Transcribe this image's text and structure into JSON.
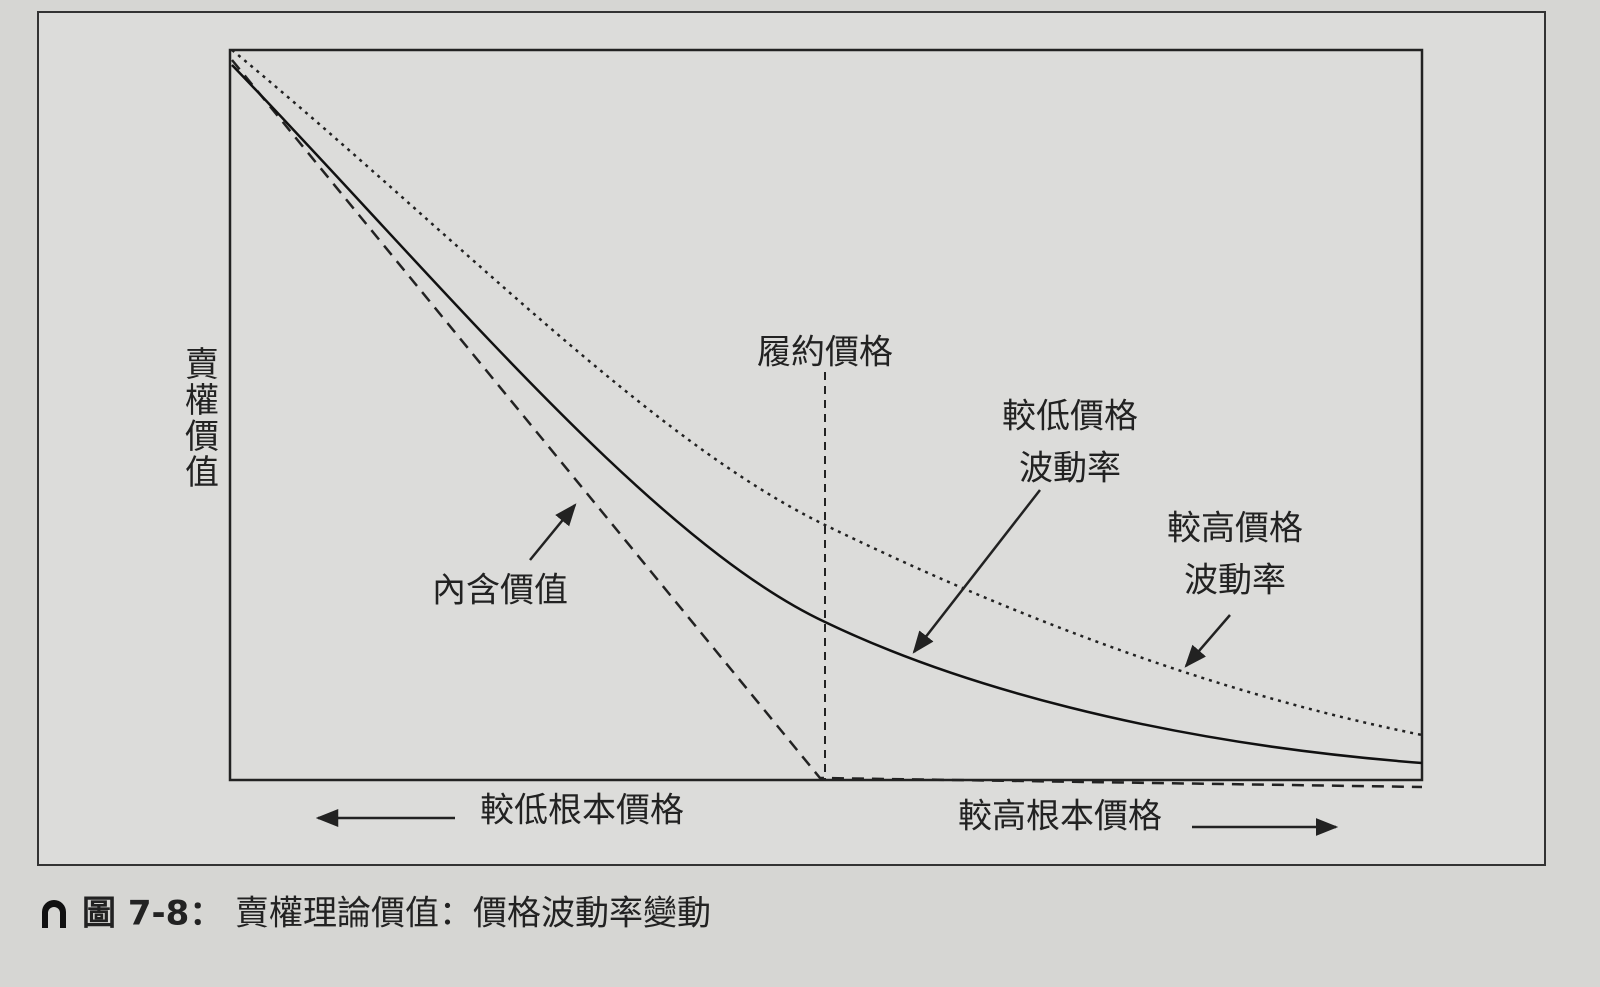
{
  "diagram": {
    "y_axis_label": "賣權價值",
    "strike_label": "履約價格",
    "lower_vol_label": [
      "較低價格",
      "波動率"
    ],
    "higher_vol_label": [
      "較高價格",
      "波動率"
    ],
    "intrinsic_label": "內含價值",
    "x_left_label": "較低根本價格",
    "x_right_label": "較高根本價格"
  },
  "caption": {
    "number": "圖 7-8：",
    "text": "賣權理論價值：價格波動率變動"
  }
}
